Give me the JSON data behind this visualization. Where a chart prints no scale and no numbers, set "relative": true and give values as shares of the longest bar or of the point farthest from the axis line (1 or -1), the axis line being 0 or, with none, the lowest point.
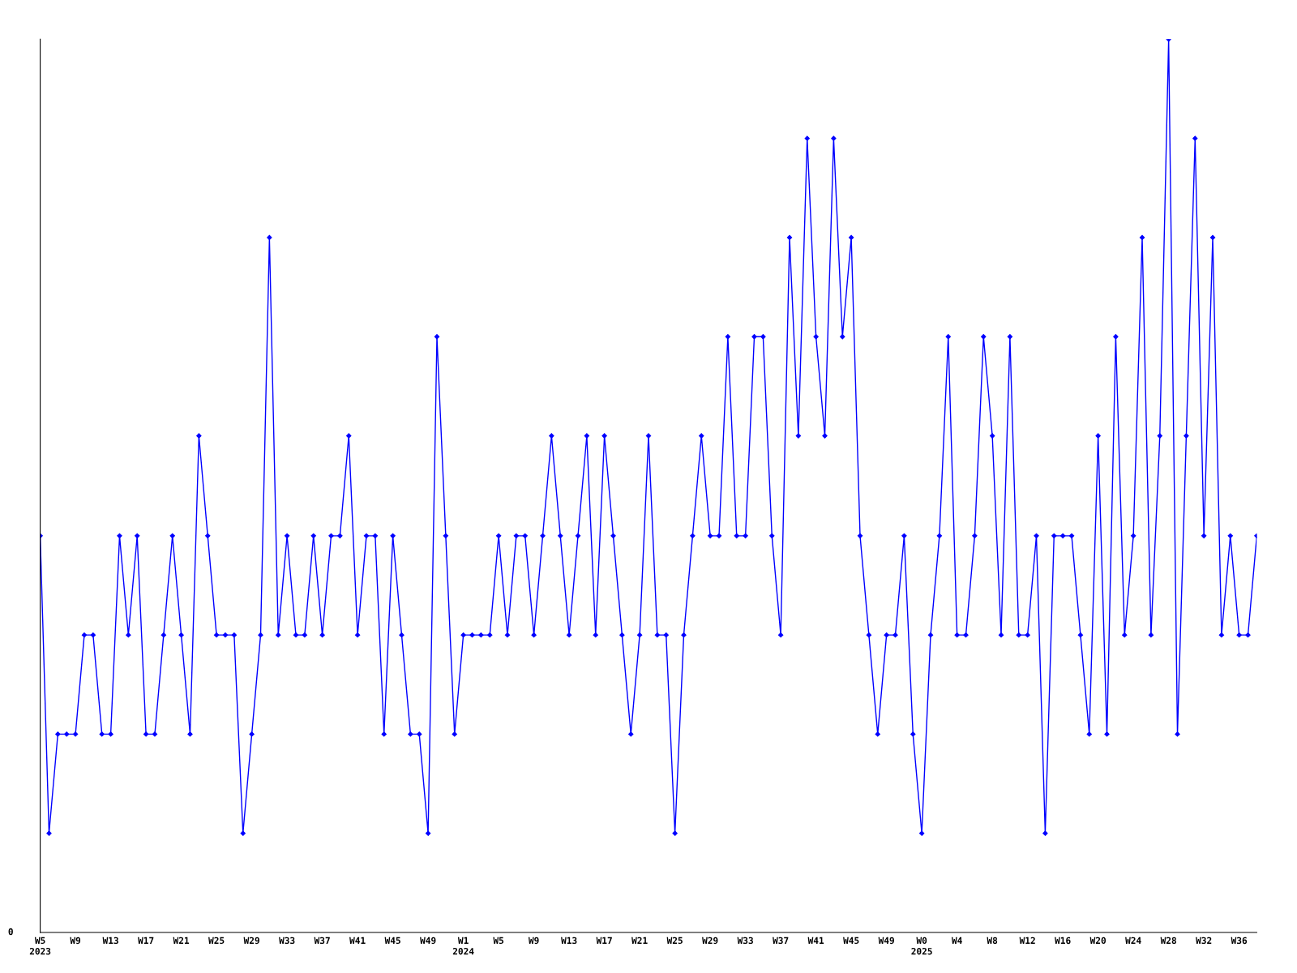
{
  "chart_data": {
    "type": "line",
    "relative": true,
    "color": "#0000ff",
    "marker": "diamond",
    "line_style": "solid",
    "grid": false,
    "annotations": [
      "0"
    ],
    "categories": [
      "W5\n2023",
      null,
      null,
      null,
      "W9",
      null,
      null,
      null,
      "W13",
      null,
      null,
      null,
      "W17",
      null,
      null,
      null,
      "W21",
      null,
      null,
      null,
      "W25",
      null,
      null,
      null,
      "W29",
      null,
      null,
      null,
      "W33",
      null,
      null,
      null,
      "W37",
      null,
      null,
      null,
      "W41",
      null,
      null,
      null,
      "W45",
      null,
      null,
      null,
      "W49",
      null,
      null,
      null,
      "W1\n2024",
      null,
      null,
      null,
      "W5",
      null,
      null,
      null,
      "W9",
      null,
      null,
      null,
      "W13",
      null,
      null,
      null,
      "W17",
      null,
      null,
      null,
      "W21",
      null,
      null,
      null,
      "W25",
      null,
      null,
      null,
      "W29",
      null,
      null,
      null,
      "W33",
      null,
      null,
      null,
      "W37",
      null,
      null,
      null,
      "W41",
      null,
      null,
      null,
      "W45",
      null,
      null,
      null,
      "W49",
      null,
      null,
      null,
      "W0\n2025",
      null,
      null,
      null,
      "W4",
      null,
      null,
      null,
      "W8",
      null,
      null,
      null,
      "W12",
      null,
      null,
      null,
      "W16",
      null,
      null,
      null,
      "W20",
      null,
      null,
      null,
      "W24",
      null,
      null,
      null,
      "W28",
      null,
      null,
      null,
      "W32",
      null,
      null,
      null,
      "W36",
      null,
      null
    ],
    "values": [
      0.444,
      0.111,
      0.222,
      0.222,
      0.222,
      0.333,
      0.333,
      0.222,
      0.222,
      0.444,
      0.333,
      0.444,
      0.222,
      0.222,
      0.333,
      0.444,
      0.333,
      0.222,
      0.556,
      0.444,
      0.333,
      0.333,
      0.333,
      0.111,
      0.222,
      0.333,
      0.778,
      0.333,
      0.444,
      0.333,
      0.333,
      0.444,
      0.333,
      0.444,
      0.444,
      0.556,
      0.333,
      0.444,
      0.444,
      0.222,
      0.444,
      0.333,
      0.222,
      0.222,
      0.111,
      0.667,
      0.444,
      0.222,
      0.333,
      0.333,
      0.333,
      0.333,
      0.444,
      0.333,
      0.444,
      0.444,
      0.333,
      0.444,
      0.556,
      0.444,
      0.333,
      0.444,
      0.556,
      0.333,
      0.556,
      0.444,
      0.333,
      0.222,
      0.333,
      0.556,
      0.333,
      0.333,
      0.111,
      0.333,
      0.444,
      0.556,
      0.444,
      0.444,
      0.667,
      0.444,
      0.444,
      0.667,
      0.667,
      0.444,
      0.333,
      0.778,
      0.556,
      0.889,
      0.667,
      0.556,
      0.889,
      0.667,
      0.778,
      0.444,
      0.333,
      0.222,
      0.333,
      0.333,
      0.444,
      0.222,
      0.111,
      0.333,
      0.444,
      0.667,
      0.333,
      0.333,
      0.444,
      0.667,
      0.556,
      0.333,
      0.667,
      0.333,
      0.333,
      0.444,
      0.111,
      0.444,
      0.444,
      0.444,
      0.333,
      0.222,
      0.556,
      0.222,
      0.667,
      0.333,
      0.444,
      0.778,
      0.333,
      0.556,
      1,
      0.222,
      0.556,
      0.889,
      0.444,
      0.778,
      0.333,
      0.444,
      0.333,
      0.333,
      0.444
    ]
  }
}
